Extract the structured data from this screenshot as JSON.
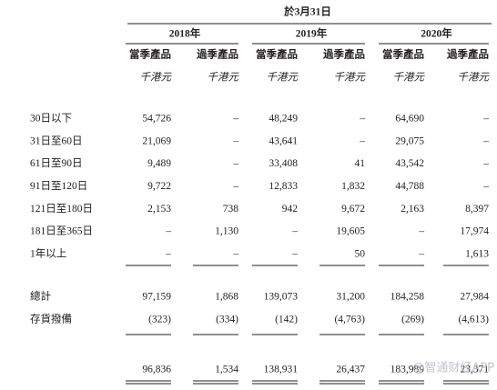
{
  "table": {
    "header": "於3月31日",
    "years": [
      "2018年",
      "2019年",
      "2020年"
    ],
    "subheaders": [
      "當季產品",
      "過季產品",
      "當季產品",
      "過季產品",
      "當季產品",
      "過季產品"
    ],
    "units": [
      "千港元",
      "千港元",
      "千港元",
      "千港元",
      "千港元",
      "千港元"
    ],
    "rows": [
      {
        "label": "30日以下",
        "values": [
          "54,726",
          "–",
          "48,249",
          "–",
          "64,690",
          "–"
        ]
      },
      {
        "label": "31日至60日",
        "values": [
          "21,069",
          "–",
          "43,641",
          "–",
          "29,075",
          "–"
        ]
      },
      {
        "label": "61日至90日",
        "values": [
          "9,489",
          "–",
          "33,408",
          "41",
          "43,542",
          "–"
        ]
      },
      {
        "label": "91日至120日",
        "values": [
          "9,722",
          "–",
          "12,833",
          "1,832",
          "44,788",
          "–"
        ]
      },
      {
        "label": "121日至180日",
        "values": [
          "2,153",
          "738",
          "942",
          "9,672",
          "2,163",
          "8,397"
        ]
      },
      {
        "label": "181日至365日",
        "values": [
          "–",
          "1,130",
          "–",
          "19,605",
          "–",
          "17,974"
        ]
      },
      {
        "label": "1年以上",
        "values": [
          "–",
          "–",
          "–",
          "50",
          "–",
          "1,613"
        ]
      }
    ],
    "subtotal_rows": [
      {
        "label": "總計",
        "values": [
          "97,159",
          "1,868",
          "139,073",
          "31,200",
          "184,258",
          "27,984"
        ]
      },
      {
        "label": "存貨撥備",
        "values": [
          "(323)",
          "(334)",
          "(142)",
          "(4,763)",
          "(269)",
          "(4,613)"
        ]
      }
    ],
    "net_values": [
      "96,836",
      "1,534",
      "138,931",
      "26,437",
      "183,989",
      "23,371"
    ],
    "watermark": "@智通财经APP"
  }
}
